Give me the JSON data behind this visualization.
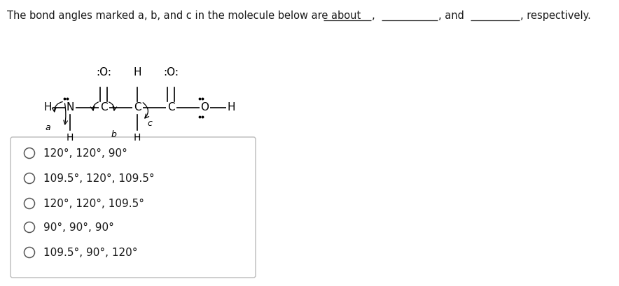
{
  "bg_color": "#ffffff",
  "text_color": "#1a1a1a",
  "title_part1": "The bond angles marked a, b, and c in the molecule below are about",
  "title_part2": ", and",
  "title_part3": ", respectively.",
  "options": [
    "120°, 120°, 90°",
    "109.5°, 120°, 109.5°",
    "120°, 120°, 109.5°",
    "90°, 90°, 90°",
    "109.5°, 90°, 120°"
  ],
  "font_size_title": 10.5,
  "font_size_options": 11,
  "font_size_mol": 11
}
